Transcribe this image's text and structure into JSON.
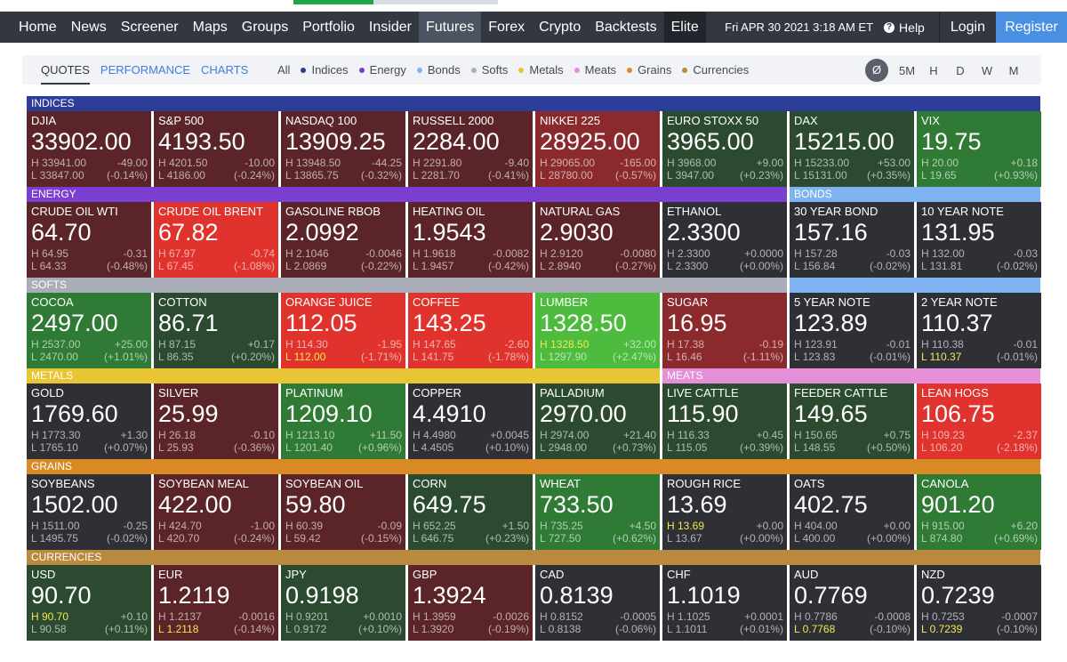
{
  "nav": {
    "items": [
      "Home",
      "News",
      "Screener",
      "Maps",
      "Groups",
      "Portfolio",
      "Insider",
      "Futures",
      "Forex",
      "Crypto",
      "Backtests",
      "Elite"
    ],
    "active": "Futures",
    "datetime": "Fri APR 30 2021 3:18 AM ET",
    "help": "Help",
    "login": "Login",
    "register": "Register"
  },
  "tabs": [
    "QUOTES",
    "PERFORMANCE",
    "CHARTS"
  ],
  "filters": [
    {
      "label": "All",
      "color": ""
    },
    {
      "label": "Indices",
      "color": "#2c3e9a"
    },
    {
      "label": "Energy",
      "color": "#7a3fd1"
    },
    {
      "label": "Bonds",
      "color": "#7fb2f0"
    },
    {
      "label": "Softs",
      "color": "#a8adb8"
    },
    {
      "label": "Metals",
      "color": "#e8c534"
    },
    {
      "label": "Meats",
      "color": "#e58fd9"
    },
    {
      "label": "Grains",
      "color": "#d98a24"
    },
    {
      "label": "Currencies",
      "color": "#b8893f"
    }
  ],
  "timeframes": [
    "Ø",
    "5M",
    "H",
    "D",
    "W",
    "M"
  ],
  "colors": {
    "indices": "#2c3e9a",
    "energy": "#7a3fd1",
    "bonds": "#7fb2f0",
    "softs": "#a8adb8",
    "metals": "#e8c534",
    "meats": "#e58fd9",
    "grains": "#d98a24",
    "currencies": "#b8893f",
    "neutral": "#2e3036",
    "red_dark": "#5a2428",
    "red_mid": "#8a2a2c",
    "red_bright": "#e0332d",
    "green_dark": "#2b4a2f",
    "green_mid": "#2f7a34",
    "green_bright": "#4dbb3e"
  },
  "sections": [
    {
      "key": "indices",
      "label": "INDICES"
    },
    {
      "key": "energy",
      "label": "ENERGY"
    },
    {
      "key": "bonds",
      "label": "BONDS"
    },
    {
      "key": "softs",
      "label": "SOFTS"
    },
    {
      "key": "metals",
      "label": "METALS"
    },
    {
      "key": "meats",
      "label": "MEATS"
    },
    {
      "key": "grains",
      "label": "GRAINS"
    },
    {
      "key": "currencies",
      "label": "CURRENCIES"
    }
  ],
  "tiles": [
    [
      {
        "name": "DJIA",
        "price": "33902.00",
        "high": "33941.00",
        "low": "33847.00",
        "change": "-49.00",
        "pct": "(-0.14%)",
        "shade": "red_dark",
        "hit": ""
      },
      {
        "name": "S&P 500",
        "price": "4193.50",
        "high": "4201.50",
        "low": "4186.00",
        "change": "-10.00",
        "pct": "(-0.24%)",
        "shade": "red_dark",
        "hit": ""
      },
      {
        "name": "NASDAQ 100",
        "price": "13909.25",
        "high": "13948.50",
        "low": "13865.75",
        "change": "-44.25",
        "pct": "(-0.32%)",
        "shade": "red_dark",
        "hit": ""
      },
      {
        "name": "RUSSELL 2000",
        "price": "2284.00",
        "high": "2291.80",
        "low": "2281.70",
        "change": "-9.40",
        "pct": "(-0.41%)",
        "shade": "red_dark",
        "hit": ""
      },
      {
        "name": "NIKKEI 225",
        "price": "28925.00",
        "high": "29065.00",
        "low": "28780.00",
        "change": "-165.00",
        "pct": "(-0.57%)",
        "shade": "red_mid",
        "hit": ""
      },
      {
        "name": "EURO STOXX 50",
        "price": "3965.00",
        "high": "3968.00",
        "low": "3947.00",
        "change": "+9.00",
        "pct": "(+0.23%)",
        "shade": "green_dark",
        "hit": ""
      },
      {
        "name": "DAX",
        "price": "15215.00",
        "high": "15233.00",
        "low": "15131.00",
        "change": "+53.00",
        "pct": "(+0.35%)",
        "shade": "green_dark",
        "hit": ""
      },
      {
        "name": "VIX",
        "price": "19.75",
        "high": "20.00",
        "low": "19.65",
        "change": "+0.18",
        "pct": "(+0.93%)",
        "shade": "green_mid",
        "hit": ""
      }
    ],
    [
      {
        "name": "CRUDE OIL WTI",
        "price": "64.70",
        "high": "64.95",
        "low": "64.33",
        "change": "-0.31",
        "pct": "(-0.48%)",
        "shade": "red_dark",
        "hit": ""
      },
      {
        "name": "CRUDE OIL BRENT",
        "price": "67.82",
        "high": "67.97",
        "low": "67.45",
        "change": "-0.74",
        "pct": "(-1.08%)",
        "shade": "red_bright",
        "hit": ""
      },
      {
        "name": "GASOLINE RBOB",
        "price": "2.0992",
        "high": "2.1046",
        "low": "2.0869",
        "change": "-0.0046",
        "pct": "(-0.22%)",
        "shade": "red_dark",
        "hit": ""
      },
      {
        "name": "HEATING OIL",
        "price": "1.9543",
        "high": "1.9618",
        "low": "1.9457",
        "change": "-0.0082",
        "pct": "(-0.42%)",
        "shade": "red_dark",
        "hit": ""
      },
      {
        "name": "NATURAL GAS",
        "price": "2.9030",
        "high": "2.9120",
        "low": "2.8940",
        "change": "-0.0080",
        "pct": "(-0.27%)",
        "shade": "red_dark",
        "hit": ""
      },
      {
        "name": "ETHANOL",
        "price": "2.3300",
        "high": "2.3300",
        "low": "2.3300",
        "change": "+0.0000",
        "pct": "(+0.00%)",
        "shade": "neutral",
        "hit": ""
      },
      {
        "name": "30 YEAR BOND",
        "price": "157.16",
        "high": "157.28",
        "low": "156.84",
        "change": "-0.03",
        "pct": "(-0.02%)",
        "shade": "neutral",
        "hit": ""
      },
      {
        "name": "10 YEAR NOTE",
        "price": "131.95",
        "high": "132.00",
        "low": "131.81",
        "change": "-0.03",
        "pct": "(-0.02%)",
        "shade": "neutral",
        "hit": ""
      }
    ],
    [
      {
        "name": "COCOA",
        "price": "2497.00",
        "high": "2537.00",
        "low": "2470.00",
        "change": "+25.00",
        "pct": "(+1.01%)",
        "shade": "green_mid",
        "hit": ""
      },
      {
        "name": "COTTON",
        "price": "86.71",
        "high": "87.15",
        "low": "86.35",
        "change": "+0.17",
        "pct": "(+0.20%)",
        "shade": "green_dark",
        "hit": ""
      },
      {
        "name": "ORANGE JUICE",
        "price": "112.05",
        "high": "114.30",
        "low": "112.00",
        "change": "-1.95",
        "pct": "(-1.71%)",
        "shade": "red_bright",
        "hit": "low"
      },
      {
        "name": "COFFEE",
        "price": "143.25",
        "high": "147.65",
        "low": "141.75",
        "change": "-2.60",
        "pct": "(-1.78%)",
        "shade": "red_bright",
        "hit": ""
      },
      {
        "name": "LUMBER",
        "price": "1328.50",
        "high": "1328.50",
        "low": "1297.90",
        "change": "+32.00",
        "pct": "(+2.47%)",
        "shade": "green_bright",
        "hit": "high"
      },
      {
        "name": "SUGAR",
        "price": "16.95",
        "high": "17.38",
        "low": "16.46",
        "change": "-0.19",
        "pct": "(-1.11%)",
        "shade": "red_mid",
        "hit": ""
      },
      {
        "name": "5 YEAR NOTE",
        "price": "123.89",
        "high": "123.91",
        "low": "123.83",
        "change": "-0.01",
        "pct": "(-0.01%)",
        "shade": "neutral",
        "hit": ""
      },
      {
        "name": "2 YEAR NOTE",
        "price": "110.37",
        "high": "110.38",
        "low": "110.37",
        "change": "-0.01",
        "pct": "(-0.01%)",
        "shade": "neutral",
        "hit": "low"
      }
    ],
    [
      {
        "name": "GOLD",
        "price": "1769.60",
        "high": "1773.30",
        "low": "1765.10",
        "change": "+1.30",
        "pct": "(+0.07%)",
        "shade": "neutral",
        "hit": ""
      },
      {
        "name": "SILVER",
        "price": "25.99",
        "high": "26.18",
        "low": "25.93",
        "change": "-0.10",
        "pct": "(-0.36%)",
        "shade": "red_dark",
        "hit": ""
      },
      {
        "name": "PLATINUM",
        "price": "1209.10",
        "high": "1213.10",
        "low": "1201.40",
        "change": "+11.50",
        "pct": "(+0.96%)",
        "shade": "green_mid",
        "hit": ""
      },
      {
        "name": "COPPER",
        "price": "4.4910",
        "high": "4.4980",
        "low": "4.4505",
        "change": "+0.0045",
        "pct": "(+0.10%)",
        "shade": "neutral",
        "hit": ""
      },
      {
        "name": "PALLADIUM",
        "price": "2970.00",
        "high": "2974.00",
        "low": "2948.00",
        "change": "+21.40",
        "pct": "(+0.73%)",
        "shade": "green_dark",
        "hit": ""
      },
      {
        "name": "LIVE CATTLE",
        "price": "115.90",
        "high": "116.33",
        "low": "115.05",
        "change": "+0.45",
        "pct": "(+0.39%)",
        "shade": "green_dark",
        "hit": ""
      },
      {
        "name": "FEEDER CATTLE",
        "price": "149.65",
        "high": "150.65",
        "low": "148.55",
        "change": "+0.75",
        "pct": "(+0.50%)",
        "shade": "green_dark",
        "hit": ""
      },
      {
        "name": "LEAN HOGS",
        "price": "106.75",
        "high": "109.23",
        "low": "106.20",
        "change": "-2.37",
        "pct": "(-2.18%)",
        "shade": "red_bright",
        "hit": ""
      }
    ],
    [
      {
        "name": "SOYBEANS",
        "price": "1502.00",
        "high": "1511.00",
        "low": "1495.75",
        "change": "-0.25",
        "pct": "(-0.02%)",
        "shade": "neutral",
        "hit": ""
      },
      {
        "name": "SOYBEAN MEAL",
        "price": "422.00",
        "high": "424.70",
        "low": "420.70",
        "change": "-1.00",
        "pct": "(-0.24%)",
        "shade": "red_dark",
        "hit": ""
      },
      {
        "name": "SOYBEAN OIL",
        "price": "59.80",
        "high": "60.39",
        "low": "59.42",
        "change": "-0.09",
        "pct": "(-0.15%)",
        "shade": "red_dark",
        "hit": ""
      },
      {
        "name": "CORN",
        "price": "649.75",
        "high": "652.25",
        "low": "646.75",
        "change": "+1.50",
        "pct": "(+0.23%)",
        "shade": "green_dark",
        "hit": ""
      },
      {
        "name": "WHEAT",
        "price": "733.50",
        "high": "735.25",
        "low": "727.50",
        "change": "+4.50",
        "pct": "(+0.62%)",
        "shade": "green_mid",
        "hit": ""
      },
      {
        "name": "ROUGH RICE",
        "price": "13.69",
        "high": "13.69",
        "low": "13.67",
        "change": "+0.00",
        "pct": "(+0.00%)",
        "shade": "neutral",
        "hit": "high"
      },
      {
        "name": "OATS",
        "price": "402.75",
        "high": "404.00",
        "low": "400.00",
        "change": "+0.00",
        "pct": "(+0.00%)",
        "shade": "neutral",
        "hit": ""
      },
      {
        "name": "CANOLA",
        "price": "901.20",
        "high": "915.00",
        "low": "874.80",
        "change": "+6.20",
        "pct": "(+0.69%)",
        "shade": "green_mid",
        "hit": ""
      }
    ],
    [
      {
        "name": "USD",
        "price": "90.70",
        "high": "90.70",
        "low": "90.58",
        "change": "+0.10",
        "pct": "(+0.11%)",
        "shade": "green_dark",
        "hit": "high"
      },
      {
        "name": "EUR",
        "price": "1.2119",
        "high": "1.2137",
        "low": "1.2118",
        "change": "-0.0016",
        "pct": "(-0.14%)",
        "shade": "red_dark",
        "hit": "low"
      },
      {
        "name": "JPY",
        "price": "0.9198",
        "high": "0.9201",
        "low": "0.9172",
        "change": "+0.0010",
        "pct": "(+0.10%)",
        "shade": "green_dark",
        "hit": ""
      },
      {
        "name": "GBP",
        "price": "1.3924",
        "high": "1.3959",
        "low": "1.3920",
        "change": "-0.0026",
        "pct": "(-0.19%)",
        "shade": "red_dark",
        "hit": ""
      },
      {
        "name": "CAD",
        "price": "0.8139",
        "high": "0.8152",
        "low": "0.8138",
        "change": "-0.0005",
        "pct": "(-0.06%)",
        "shade": "neutral",
        "hit": ""
      },
      {
        "name": "CHF",
        "price": "1.1019",
        "high": "1.1025",
        "low": "1.1011",
        "change": "+0.0001",
        "pct": "(+0.01%)",
        "shade": "neutral",
        "hit": ""
      },
      {
        "name": "AUD",
        "price": "0.7769",
        "high": "0.7786",
        "low": "0.7768",
        "change": "-0.0008",
        "pct": "(-0.10%)",
        "shade": "neutral",
        "hit": "low"
      },
      {
        "name": "NZD",
        "price": "0.7239",
        "high": "0.7253",
        "low": "0.7239",
        "change": "-0.0007",
        "pct": "(-0.10%)",
        "shade": "neutral",
        "hit": "low"
      }
    ]
  ]
}
